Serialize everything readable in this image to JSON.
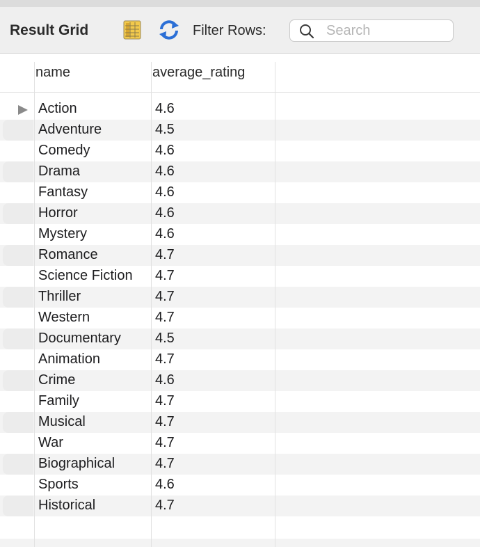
{
  "toolbar": {
    "title": "Result Grid",
    "filter_label": "Filter Rows:",
    "search_placeholder": "Search"
  },
  "grid": {
    "columns": [
      "name",
      "average_rating"
    ],
    "rows": [
      [
        "Action",
        "4.6"
      ],
      [
        "Adventure",
        "4.5"
      ],
      [
        "Comedy",
        "4.6"
      ],
      [
        "Drama",
        "4.6"
      ],
      [
        "Fantasy",
        "4.6"
      ],
      [
        "Horror",
        "4.6"
      ],
      [
        "Mystery",
        "4.6"
      ],
      [
        "Romance",
        "4.7"
      ],
      [
        "Science Fiction",
        "4.7"
      ],
      [
        "Thriller",
        "4.7"
      ],
      [
        "Western",
        "4.7"
      ],
      [
        "Documentary",
        "4.5"
      ],
      [
        "Animation",
        "4.7"
      ],
      [
        "Crime",
        "4.6"
      ],
      [
        "Family",
        "4.7"
      ],
      [
        "Musical",
        "4.7"
      ],
      [
        "War",
        "4.7"
      ],
      [
        "Biographical",
        "4.7"
      ],
      [
        "Sports",
        "4.6"
      ],
      [
        "Historical",
        "4.7"
      ]
    ]
  },
  "colors": {
    "accent_blue": "#2b6fd6",
    "stripe": "#f3f3f3"
  },
  "icons": [
    "grid-toggle-icon",
    "refresh-icon",
    "search-icon",
    "current-row-marker-icon"
  ]
}
